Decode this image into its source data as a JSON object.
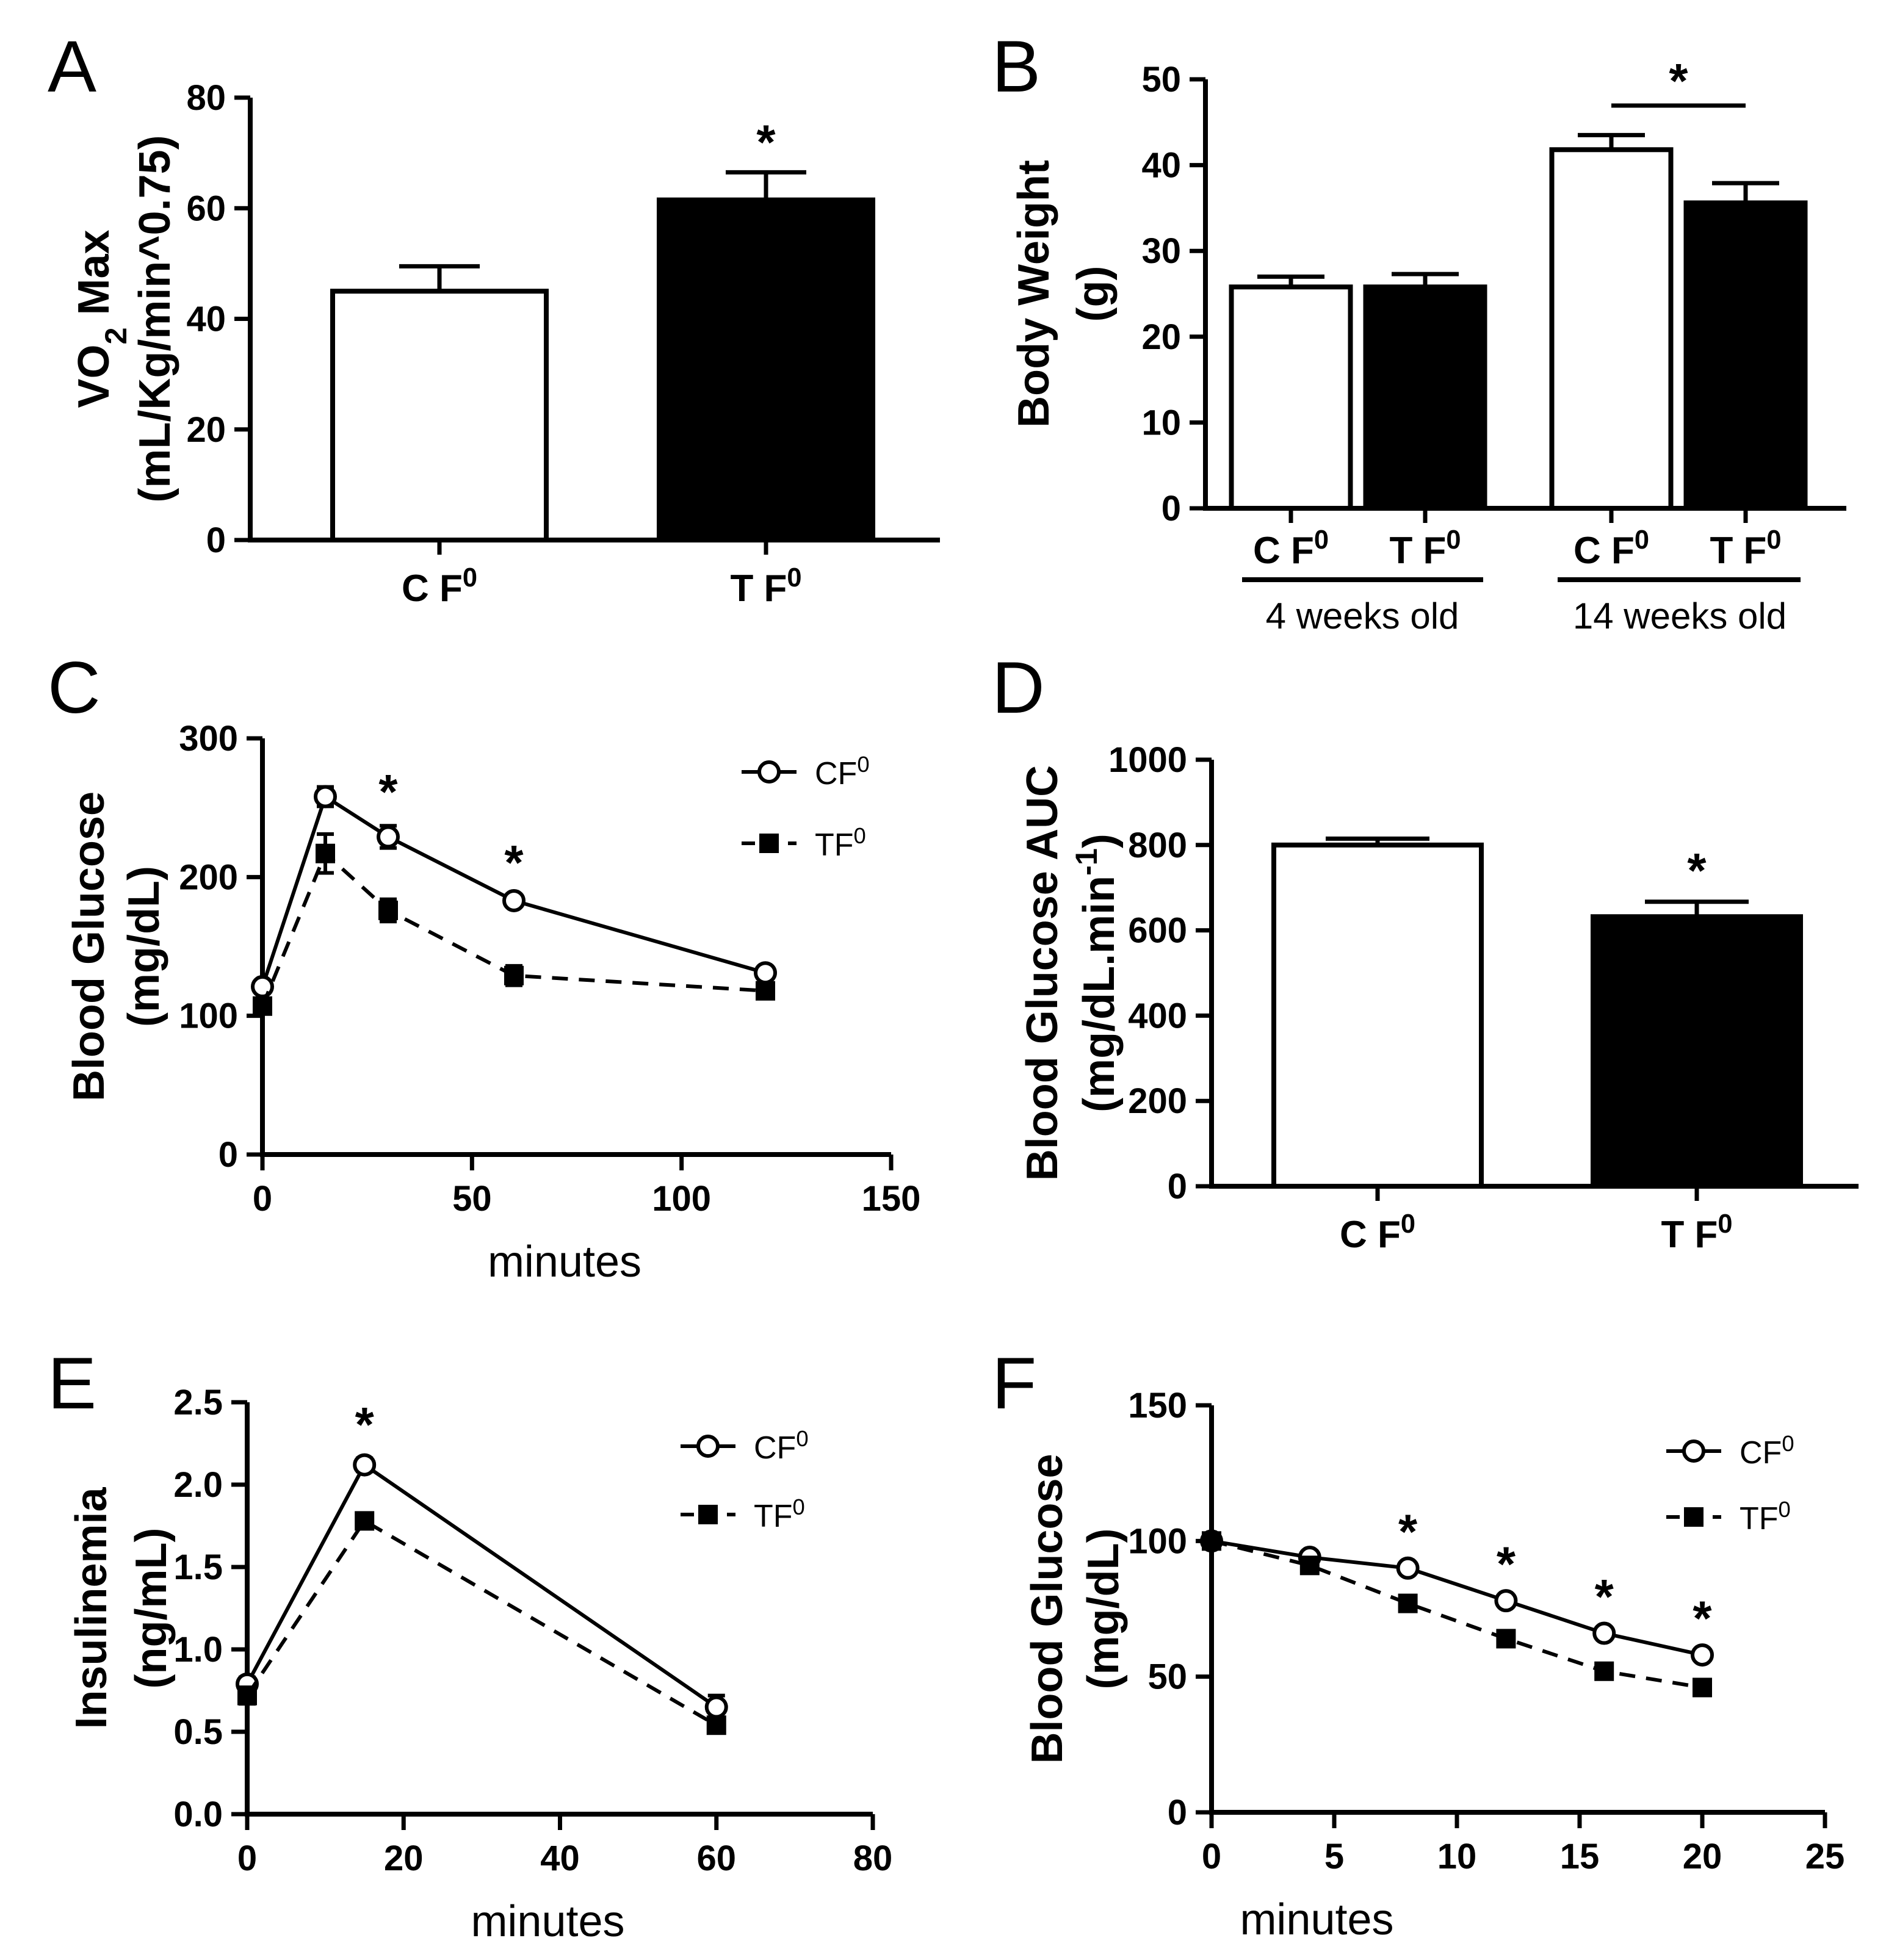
{
  "chart_data": [
    {
      "id": "A",
      "panel_label": "A",
      "type": "bar",
      "ylabel_line1": "VO",
      "ylabel_sub": "2",
      "ylabel_line1_rest": " Max",
      "ylabel_line2": "(mL/Kg/min^0.75)",
      "ylim": [
        0,
        80
      ],
      "yticks": [
        "0",
        "20",
        "40",
        "60",
        "80"
      ],
      "categories": [
        "C F",
        "T F"
      ],
      "category_sup": "0",
      "values": [
        45,
        61.5
      ],
      "errors": [
        4.5,
        5
      ],
      "fills": [
        "#ffffff",
        "#000000"
      ],
      "significance": [
        "",
        "*"
      ]
    },
    {
      "id": "B",
      "panel_label": "B",
      "type": "bar",
      "ylabel_line1": "Body Weight",
      "ylabel_line2": "(g)",
      "ylim": [
        0,
        50
      ],
      "yticks": [
        "0",
        "10",
        "20",
        "30",
        "40",
        "50"
      ],
      "categories": [
        "C F",
        "T F",
        "C F",
        "T F"
      ],
      "category_sup": "0",
      "values": [
        25.8,
        25.8,
        41.8,
        35.6
      ],
      "errors": [
        1.2,
        1.5,
        1.7,
        2.3
      ],
      "fills": [
        "#ffffff",
        "#000000",
        "#ffffff",
        "#000000"
      ],
      "groups": [
        "4 weeks old",
        "14 weeks old"
      ],
      "significance": "*"
    },
    {
      "id": "C",
      "panel_label": "C",
      "type": "line",
      "ylabel_line1": "Blood Glucose",
      "ylabel_line2": "(mg/dL)",
      "xlabel": "minutes",
      "xlim": [
        0,
        150
      ],
      "ylim": [
        0,
        300
      ],
      "xticks": [
        "0",
        "50",
        "100",
        "150"
      ],
      "yticks": [
        "0",
        "100",
        "200",
        "300"
      ],
      "legend_sup": "0",
      "series": [
        {
          "name": "CF",
          "x": [
            0,
            15,
            30,
            60,
            120
          ],
          "values": [
            121,
            258,
            229,
            183,
            131
          ],
          "errors": [
            3,
            7,
            8,
            3,
            3
          ],
          "marker": "open-circle",
          "dash": "solid"
        },
        {
          "name": "TF",
          "x": [
            0,
            15,
            30,
            60,
            120
          ],
          "values": [
            107,
            217,
            176,
            129,
            118
          ],
          "errors": [
            3,
            14,
            8,
            7,
            3
          ],
          "marker": "filled-square",
          "dash": "dashed"
        }
      ],
      "significance_x": [
        30,
        60
      ],
      "significance_label": "*"
    },
    {
      "id": "D",
      "panel_label": "D",
      "type": "bar",
      "ylabel_line1": "Blood Glucose AUC",
      "ylabel_line2": "(mg/dL.min",
      "ylabel_sup": "-1",
      "ylabel_end": ")",
      "ylim": [
        0,
        1000
      ],
      "yticks": [
        "0",
        "200",
        "400",
        "600",
        "800",
        "1000"
      ],
      "categories": [
        "C F",
        "T F"
      ],
      "category_sup": "0",
      "values": [
        800,
        632
      ],
      "errors": [
        15,
        35
      ],
      "fills": [
        "#ffffff",
        "#000000"
      ],
      "significance": [
        "",
        "*"
      ]
    },
    {
      "id": "E",
      "panel_label": "E",
      "type": "line",
      "ylabel_line1": "Insulinemia",
      "ylabel_line2": "(ng/mL)",
      "xlabel": "minutes",
      "xlim": [
        0,
        80
      ],
      "ylim": [
        0,
        2.5
      ],
      "xticks": [
        "0",
        "20",
        "40",
        "60",
        "80"
      ],
      "yticks": [
        "0.0",
        "0.5",
        "1.0",
        "1.5",
        "2.0",
        "2.5"
      ],
      "legend_sup": "0",
      "series": [
        {
          "name": "CF",
          "x": [
            0,
            15,
            60
          ],
          "values": [
            0.79,
            2.12,
            0.65
          ],
          "errors": [
            0.04,
            0.04,
            0.07
          ],
          "marker": "open-circle",
          "dash": "solid"
        },
        {
          "name": "TF",
          "x": [
            0,
            15,
            60
          ],
          "values": [
            0.72,
            1.78,
            0.54
          ],
          "errors": [
            0.05,
            0.03,
            0.03
          ],
          "marker": "filled-square",
          "dash": "dashed"
        }
      ],
      "significance_x": [
        15
      ],
      "significance_label": "*"
    },
    {
      "id": "F",
      "panel_label": "F",
      "type": "line",
      "ylabel_line1": "Blood Glucose",
      "ylabel_line2": "(mg/dL)",
      "xlabel": "minutes",
      "xlim": [
        0,
        25
      ],
      "ylim": [
        0,
        150
      ],
      "xticks": [
        "0",
        "5",
        "10",
        "15",
        "20",
        "25"
      ],
      "yticks": [
        "0",
        "50",
        "100",
        "150"
      ],
      "legend_sup": "0",
      "series": [
        {
          "name": "CF",
          "x": [
            0,
            4,
            8,
            12,
            16,
            20
          ],
          "values": [
            100,
            94,
            90,
            78,
            66,
            58
          ],
          "errors": [
            1,
            1,
            1,
            1,
            1,
            1
          ],
          "marker": "open-circle",
          "dash": "solid"
        },
        {
          "name": "TF",
          "x": [
            0,
            4,
            8,
            12,
            16,
            20
          ],
          "values": [
            100,
            91,
            77,
            64,
            52,
            46
          ],
          "errors": [
            1,
            1,
            1,
            1,
            1,
            1
          ],
          "marker": "filled-square",
          "dash": "dashed"
        }
      ],
      "significance_x": [
        8,
        12,
        16,
        20
      ],
      "significance_label": "*"
    }
  ]
}
